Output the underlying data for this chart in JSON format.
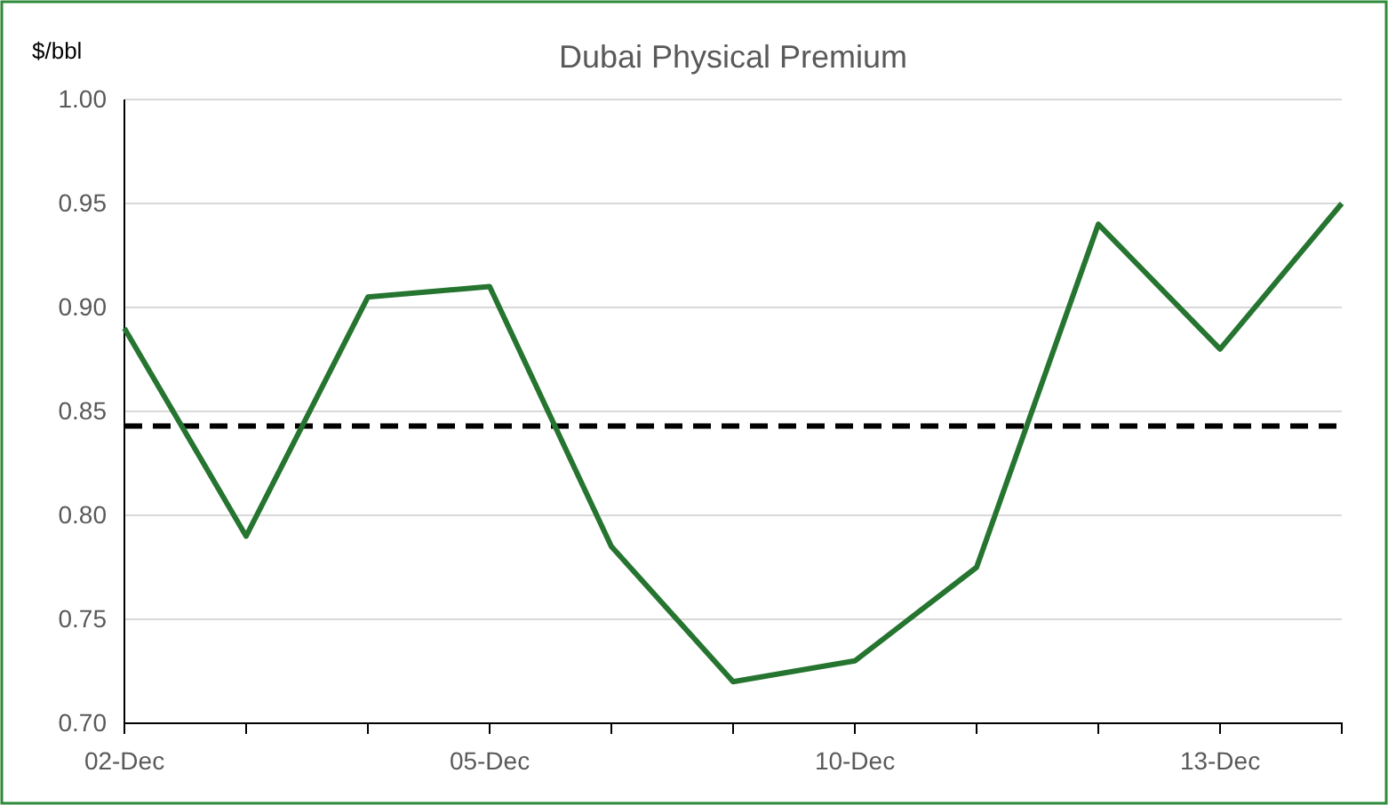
{
  "chart_data": {
    "type": "line",
    "title": "Dubai Physical Premium",
    "ylabel": "$/bbl",
    "categories": [
      "02-Dec",
      null,
      null,
      "05-Dec",
      null,
      null,
      "10-Dec",
      null,
      null,
      "13-Dec",
      null
    ],
    "series": [
      {
        "color": "#25742f",
        "values": [
          0.89,
          0.79,
          0.905,
          0.91,
          0.785,
          0.72,
          0.73,
          0.775,
          0.94,
          0.88,
          0.95
        ]
      }
    ],
    "ylim": [
      0.7,
      1.0
    ],
    "yticks": [
      {
        "value": 0.7,
        "label": "0.70"
      },
      0.75,
      {
        "value": 0.8,
        "label": "0.80"
      },
      0.85,
      {
        "value": 0.9,
        "label": "0.90"
      },
      0.95,
      {
        "value": 1.0,
        "label": "1.00"
      }
    ],
    "ref_lines": [
      {
        "axis": "y",
        "value": 0.843,
        "color": "#000000",
        "line_style": "dashed"
      }
    ],
    "grid": "y",
    "marker": "none",
    "line_style": "solid"
  }
}
